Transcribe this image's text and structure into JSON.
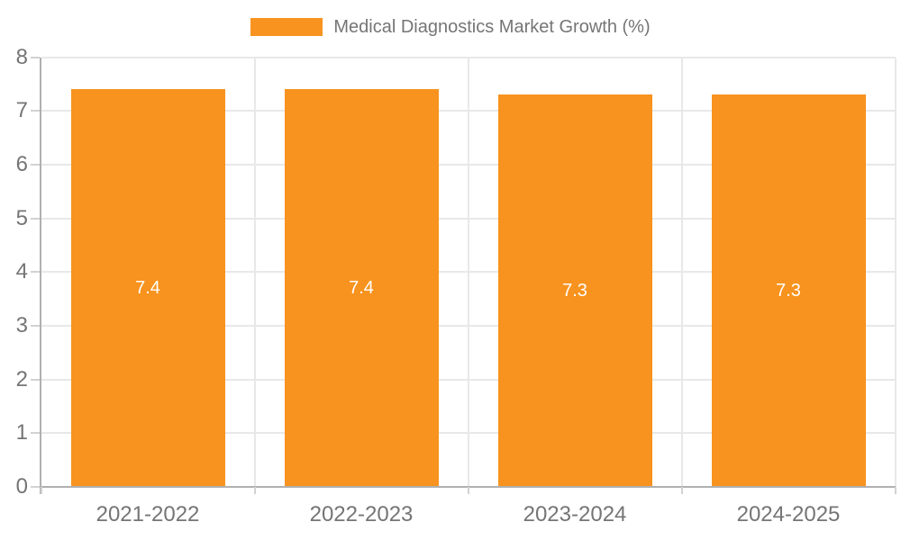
{
  "legend": {
    "label": "Medical Diagnostics Market Growth (%)"
  },
  "chart_data": {
    "type": "bar",
    "title": "Medical Diagnostics Market Growth (%)",
    "categories": [
      "2021-2022",
      "2022-2023",
      "2023-2024",
      "2024-2025"
    ],
    "values": [
      7.4,
      7.4,
      7.3,
      7.3
    ],
    "value_labels": [
      "7.4",
      "7.4",
      "7.3",
      "7.3"
    ],
    "xlabel": "",
    "ylabel": "",
    "ylim": [
      0,
      8
    ],
    "yticks": [
      "0",
      "1",
      "2",
      "3",
      "4",
      "5",
      "6",
      "7",
      "8"
    ],
    "grid": "horizontal gridlines at each integer, vertical lines at category boundaries",
    "legend_position": "top-center",
    "colors": {
      "bar": "#F7931E",
      "grid": "#e8e8e8",
      "axis": "#b0b0b0",
      "tick": "#d2d2d2",
      "text": "#757575",
      "value_label": "#ffffff",
      "background": "#ffffff"
    }
  }
}
